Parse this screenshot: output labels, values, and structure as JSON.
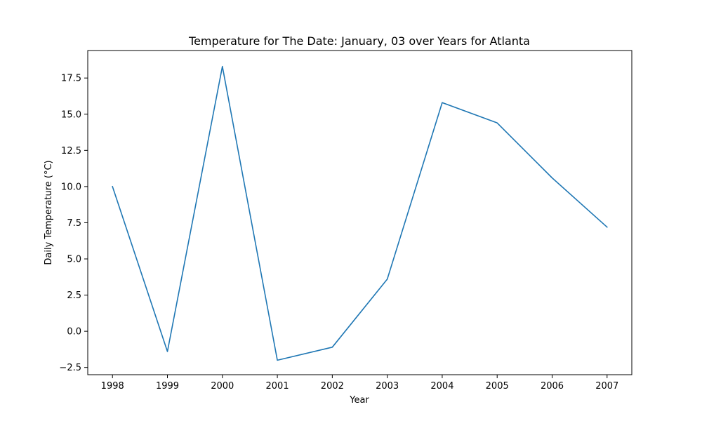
{
  "chart_data": {
    "type": "line",
    "title": "Temperature for The Date: January, 03 over Years for Atlanta",
    "xlabel": "Year",
    "ylabel": "Daily Temperature (°C)",
    "x": [
      1998,
      1999,
      2000,
      2001,
      2002,
      2003,
      2004,
      2005,
      2006,
      2007
    ],
    "x_tick_labels": [
      "1998",
      "1999",
      "2000",
      "2001",
      "2002",
      "2003",
      "2004",
      "2005",
      "2006",
      "2007"
    ],
    "y_tick_values": [
      -2.5,
      0.0,
      2.5,
      5.0,
      7.5,
      10.0,
      12.5,
      15.0,
      17.5
    ],
    "y_tick_labels": [
      "−2.5",
      "0.0",
      "2.5",
      "5.0",
      "7.5",
      "10.0",
      "12.5",
      "15.0",
      "17.5"
    ],
    "series": [
      {
        "values": [
          10.0,
          -1.4,
          18.3,
          -2.0,
          -1.1,
          3.6,
          15.8,
          14.4,
          10.6,
          7.2
        ],
        "color": "#1f77b4"
      }
    ],
    "xlim": [
      1997.55,
      2007.45
    ],
    "ylim": [
      -3.0,
      19.4
    ],
    "grid": false,
    "legend": "none"
  }
}
